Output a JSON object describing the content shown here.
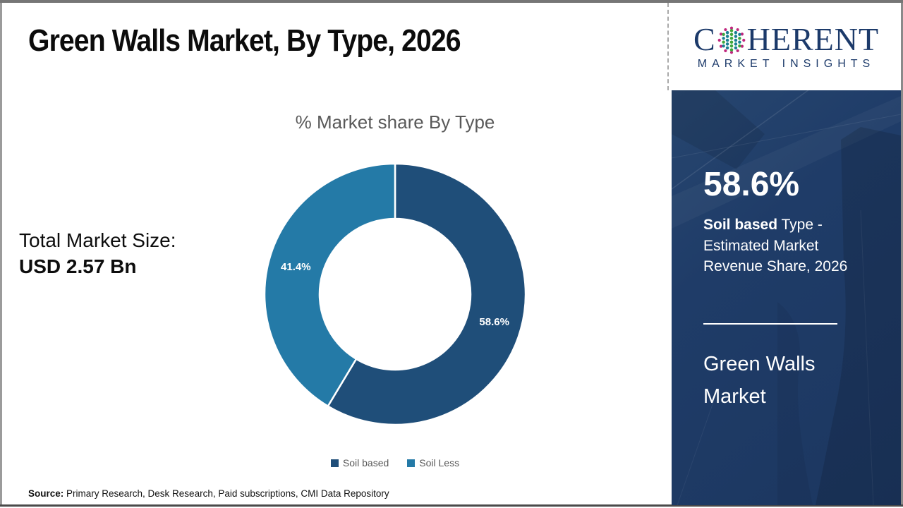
{
  "page": {
    "title": "Green Walls Market, By Type, 2026"
  },
  "logo": {
    "letter_c": "C",
    "rest": "HERENT",
    "subtitle": "MARKET INSIGHTS",
    "navy": "#1c3a6a",
    "globe_colors": {
      "ring": "#c0277e",
      "teal": "#1a8093",
      "green": "#3fa63d"
    }
  },
  "left_panel": {
    "total_label": "Total Market Size:",
    "total_value": "USD 2.57 Bn"
  },
  "chart_data": {
    "type": "pie",
    "subtype": "donut",
    "title": "% Market share By Type",
    "categories": [
      "Soil based",
      "Soil Less"
    ],
    "values": [
      58.6,
      41.4
    ],
    "data_labels": [
      "58.6%",
      "41.4%"
    ],
    "colors": [
      "#1F4E79",
      "#247AA7"
    ],
    "start_angle_deg": 0,
    "direction": "clockwise",
    "inner_radius_ratio": 0.58,
    "legend_position": "bottom",
    "label_color": "#ffffff"
  },
  "side_panel": {
    "stat_value": "58.6%",
    "stat_desc_bold": "Soil based",
    "stat_desc_rest": " Type - Estimated Market Revenue Share, 2026",
    "market_line1": "Green Walls",
    "market_line2": "Market",
    "background": "#1f3c68"
  },
  "source": {
    "label": "Source:",
    "text": " Primary Research, Desk Research, Paid subscriptions, CMI Data Repository"
  }
}
